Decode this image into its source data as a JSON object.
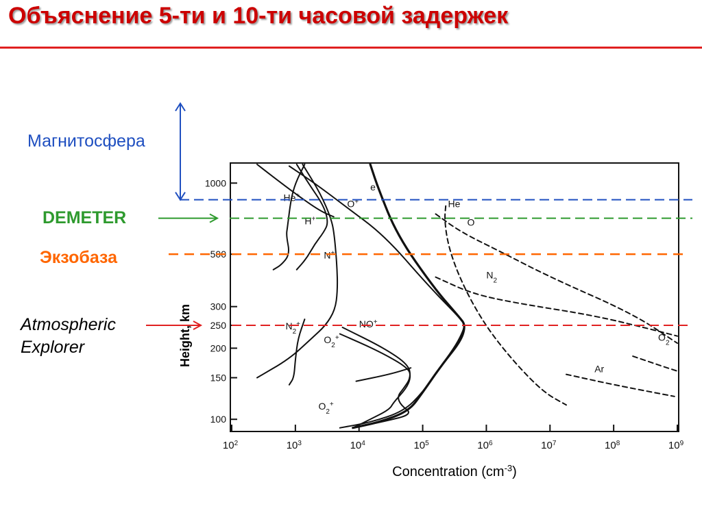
{
  "slide": {
    "title": "Объяснение 5-ти и 10-ти часовой задержек",
    "accent_color": "#cc0000"
  },
  "annotations": {
    "magnetosphere": {
      "text": "Магнитосфера",
      "color": "#1f4fc0",
      "height_km": 850
    },
    "demeter": {
      "text": "DEMETER",
      "color": "#2e9a2e",
      "height_km": 710
    },
    "exobase": {
      "text": "Экзобаза",
      "color": "#ff6600",
      "height_km": 500
    },
    "atmospheric_explorer": {
      "line1": "Atmospheric",
      "line2": "Explorer",
      "color": "#e02020",
      "height_km": 250
    }
  },
  "chart_data": {
    "type": "line",
    "xlabel": "Concentration (cm-3)",
    "xlabel_base": "Concentration (cm",
    "xlabel_sup": "-3",
    "xlabel_end": ")",
    "ylabel": "Height, km",
    "x_scale": "log",
    "y_scale": "log",
    "xlim": [
      100,
      1000000000
    ],
    "ylim": [
      90,
      1200
    ],
    "x_ticks": [
      {
        "value": 100,
        "base": "10",
        "exp": "2"
      },
      {
        "value": 1000,
        "base": "10",
        "exp": "3"
      },
      {
        "value": 10000,
        "base": "10",
        "exp": "4"
      },
      {
        "value": 100000,
        "base": "10",
        "exp": "5"
      },
      {
        "value": 1000000,
        "base": "10",
        "exp": "6"
      },
      {
        "value": 10000000,
        "base": "10",
        "exp": "7"
      },
      {
        "value": 100000000,
        "base": "10",
        "exp": "8"
      },
      {
        "value": 1000000000,
        "base": "10",
        "exp": "9"
      }
    ],
    "y_ticks": [
      {
        "value": 100,
        "label": "100"
      },
      {
        "value": 150,
        "label": "150"
      },
      {
        "value": 200,
        "label": "200"
      },
      {
        "value": 250,
        "label": "250"
      },
      {
        "value": 300,
        "label": "300"
      },
      {
        "value": 500,
        "label": "500"
      },
      {
        "value": 1000,
        "label": "1000"
      }
    ],
    "series": [
      {
        "name": "e-",
        "sup": "-",
        "style": "thick",
        "label_at": [
          15000,
          930
        ],
        "points": [
          [
            15000,
            1200
          ],
          [
            20000,
            950
          ],
          [
            40000,
            600
          ],
          [
            150000,
            360
          ],
          [
            380000,
            270
          ],
          [
            470000,
            250
          ],
          [
            400000,
            215
          ],
          [
            200000,
            170
          ],
          [
            100000,
            130
          ],
          [
            60000,
            108
          ],
          [
            20000,
            97
          ],
          [
            8000,
            92
          ]
        ]
      },
      {
        "name": "O+",
        "sup": "+",
        "style": "solid",
        "label_at": [
          6500,
          790
        ],
        "points": [
          [
            800,
            1180
          ],
          [
            2000,
            1000
          ],
          [
            6000,
            800
          ],
          [
            25000,
            600
          ],
          [
            120000,
            370
          ],
          [
            400000,
            265
          ],
          [
            470000,
            250
          ],
          [
            350000,
            210
          ],
          [
            200000,
            170
          ],
          [
            100000,
            130
          ],
          [
            50000,
            108
          ],
          [
            15000,
            97
          ],
          [
            5000,
            92
          ]
        ]
      },
      {
        "name": "He+",
        "sup": "+",
        "style": "solid",
        "label_at": [
          650,
          840
        ],
        "points": [
          [
            250,
            1200
          ],
          [
            600,
            1000
          ],
          [
            1200,
            870
          ],
          [
            2500,
            760
          ],
          [
            4000,
            720
          ]
        ]
      },
      {
        "name": "H+",
        "sup": "+",
        "style": "solid",
        "label_at": [
          1400,
          670
        ],
        "points": [
          [
            1400,
            1200
          ],
          [
            1000,
            1000
          ],
          [
            850,
            850
          ],
          [
            750,
            650
          ],
          [
            720,
            600
          ],
          [
            820,
            500
          ],
          [
            600,
            450
          ],
          [
            450,
            430
          ]
        ]
      },
      {
        "name": "H+ (upper)",
        "style": "solid",
        "points": [
          [
            1050,
            1200
          ],
          [
            1600,
            1000
          ],
          [
            2800,
            800
          ],
          [
            3300,
            680
          ],
          [
            2800,
            620
          ],
          [
            2000,
            550
          ],
          [
            1500,
            480
          ],
          [
            1050,
            430
          ]
        ]
      },
      {
        "name": "N+",
        "sup": "+",
        "style": "solid",
        "label_at": [
          2800,
          480
        ],
        "points": [
          [
            1300,
            1200
          ],
          [
            2500,
            900
          ],
          [
            3700,
            700
          ],
          [
            4100,
            600
          ],
          [
            4500,
            450
          ],
          [
            4600,
            350
          ],
          [
            4200,
            290
          ],
          [
            3000,
            250
          ],
          [
            1800,
            220
          ],
          [
            800,
            180
          ],
          [
            250,
            150
          ]
        ]
      },
      {
        "name": "N2+",
        "sub": "2",
        "sup": "+",
        "style": "solid",
        "label_at": [
          700,
          240
        ],
        "points": [
          [
            1400,
            265
          ],
          [
            1100,
            220
          ],
          [
            1000,
            180
          ],
          [
            950,
            150
          ],
          [
            800,
            140
          ]
        ]
      },
      {
        "name": "NO+",
        "sup": "+",
        "style": "solid",
        "label_at": [
          10000,
          245
        ],
        "points": [
          [
            5500,
            245
          ],
          [
            25000,
            200
          ],
          [
            60000,
            170
          ],
          [
            65000,
            150
          ],
          [
            50000,
            135
          ],
          [
            40000,
            125
          ],
          [
            45000,
            115
          ],
          [
            70000,
            105
          ],
          [
            25000,
            98
          ],
          [
            8000,
            92
          ]
        ]
      },
      {
        "name": "O2+",
        "sub": "2",
        "sup": "+",
        "style": "solid",
        "label_at": [
          2800,
          210
        ],
        "points": [
          [
            5000,
            230
          ],
          [
            20000,
            195
          ],
          [
            60000,
            165
          ],
          [
            65000,
            150
          ],
          [
            55000,
            135
          ],
          [
            35000,
            118
          ],
          [
            30000,
            110
          ],
          [
            15000,
            100
          ],
          [
            8000,
            92
          ]
        ]
      },
      {
        "name": "O2+ low",
        "sub": "2",
        "sup": "+",
        "style": "solid",
        "label_at": [
          2300,
          110
        ],
        "points": [
          [
            9000,
            145
          ],
          [
            30000,
            155
          ],
          [
            65000,
            165
          ]
        ]
      },
      {
        "name": "He",
        "style": "dashed",
        "label_at": [
          250000,
          790
        ],
        "points": [
          [
            230000,
            800
          ],
          [
            220000,
            700
          ],
          [
            250000,
            550
          ],
          [
            350000,
            420
          ],
          [
            600000,
            310
          ],
          [
            1200000,
            230
          ],
          [
            3000000,
            170
          ],
          [
            8000000,
            130
          ],
          [
            18000000,
            115
          ]
        ]
      },
      {
        "name": "O",
        "style": "dashed",
        "label_at": [
          500000,
          660
        ],
        "points": [
          [
            160000,
            740
          ],
          [
            400000,
            620
          ],
          [
            1500000,
            520
          ],
          [
            10000000,
            400
          ],
          [
            200000000,
            280
          ],
          [
            1000000000,
            210
          ]
        ]
      },
      {
        "name": "N2",
        "sub": "2",
        "style": "dashed",
        "label_at": [
          1000000,
          395
        ],
        "points": [
          [
            160000,
            400
          ],
          [
            600000,
            340
          ],
          [
            3000000,
            310
          ],
          [
            50000000,
            275
          ],
          [
            400000000,
            240
          ],
          [
            1000000000,
            225
          ]
        ]
      },
      {
        "name": "O2",
        "sub": "2",
        "style": "dashed",
        "label_at": [
          500000000,
          215
        ],
        "points": [
          [
            200000000,
            185
          ],
          [
            500000000,
            170
          ],
          [
            1000000000,
            160
          ]
        ]
      },
      {
        "name": "Ar",
        "style": "dashed",
        "label_at": [
          50000000,
          158
        ],
        "points": [
          [
            18000000,
            155
          ],
          [
            100000000,
            140
          ],
          [
            900000000,
            125
          ]
        ]
      }
    ],
    "reference_lines": [
      {
        "name": "magnetosphere",
        "height_km": 850,
        "color": "#1f4fc0"
      },
      {
        "name": "demeter",
        "height_km": 710,
        "color": "#2e9a2e"
      },
      {
        "name": "exobase",
        "height_km": 500,
        "color": "#ff6600"
      },
      {
        "name": "atmospheric-explorer",
        "height_km": 250,
        "color": "#e02020"
      }
    ],
    "grid": false
  }
}
